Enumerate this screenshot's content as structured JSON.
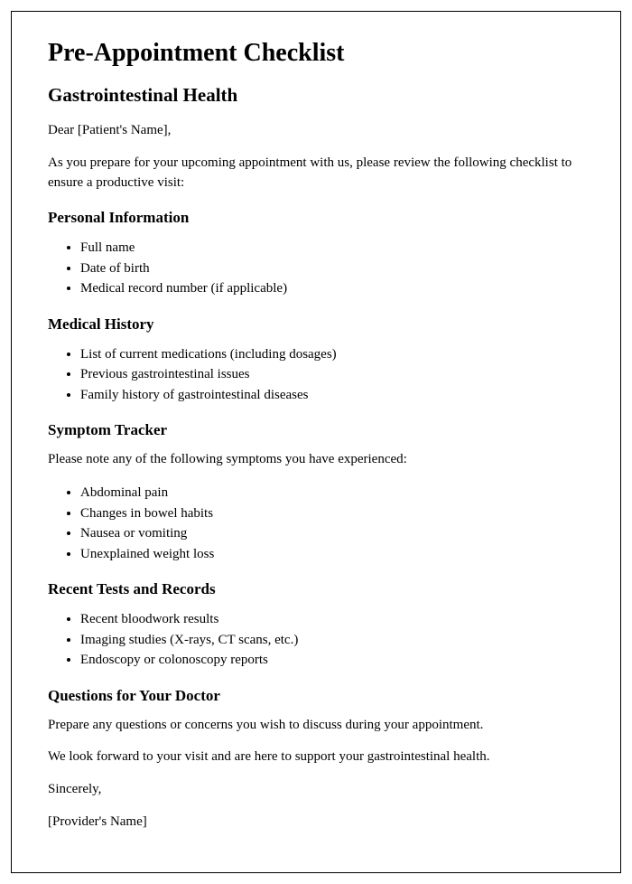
{
  "title": "Pre-Appointment Checklist",
  "subtitle": "Gastrointestinal Health",
  "greeting": "Dear [Patient's Name],",
  "intro": "As you prepare for your upcoming appointment with us, please review the following checklist to ensure a productive visit:",
  "sections": {
    "personal": {
      "heading": "Personal Information",
      "items": [
        "Full name",
        "Date of birth",
        "Medical record number (if applicable)"
      ]
    },
    "history": {
      "heading": "Medical History",
      "items": [
        "List of current medications (including dosages)",
        "Previous gastrointestinal issues",
        "Family history of gastrointestinal diseases"
      ]
    },
    "symptoms": {
      "heading": "Symptom Tracker",
      "lead": "Please note any of the following symptoms you have experienced:",
      "items": [
        "Abdominal pain",
        "Changes in bowel habits",
        "Nausea or vomiting",
        "Unexplained weight loss"
      ]
    },
    "tests": {
      "heading": "Recent Tests and Records",
      "items": [
        "Recent bloodwork results",
        "Imaging studies (X-rays, CT scans, etc.)",
        "Endoscopy or colonoscopy reports"
      ]
    },
    "questions": {
      "heading": "Questions for Your Doctor",
      "lead": "Prepare any questions or concerns you wish to discuss during your appointment."
    }
  },
  "closing1": "We look forward to your visit and are here to support your gastrointestinal health.",
  "closing2": "Sincerely,",
  "signature": "[Provider's Name]"
}
